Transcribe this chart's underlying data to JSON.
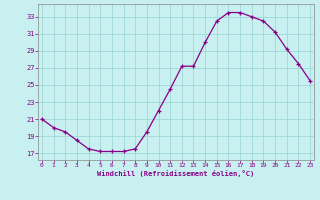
{
  "x": [
    0,
    1,
    2,
    3,
    4,
    5,
    6,
    7,
    8,
    9,
    10,
    11,
    12,
    13,
    14,
    15,
    16,
    17,
    18,
    19,
    20,
    21,
    22,
    23
  ],
  "y": [
    21,
    20,
    19.5,
    18.5,
    17.5,
    17.2,
    17.2,
    17.2,
    17.5,
    19.5,
    22,
    24.5,
    27.2,
    27.2,
    30,
    32.5,
    33.5,
    33.5,
    33,
    32.5,
    31.2,
    29.2,
    27.5,
    25.5
  ],
  "line_color": "#880088",
  "marker": "+",
  "bg_color": "#C8F0F0",
  "grid_color": "#A0D8D8",
  "xlabel": "Windchill (Refroidissement éolien,°C)",
  "xlabel_color": "#880088",
  "yticks": [
    17,
    19,
    21,
    23,
    25,
    27,
    29,
    31,
    33
  ],
  "xticks": [
    0,
    1,
    2,
    3,
    4,
    5,
    6,
    7,
    8,
    9,
    10,
    11,
    12,
    13,
    14,
    15,
    16,
    17,
    18,
    19,
    20,
    21,
    22,
    23
  ],
  "ylim": [
    16.2,
    34.5
  ],
  "xlim": [
    -0.3,
    23.3
  ]
}
